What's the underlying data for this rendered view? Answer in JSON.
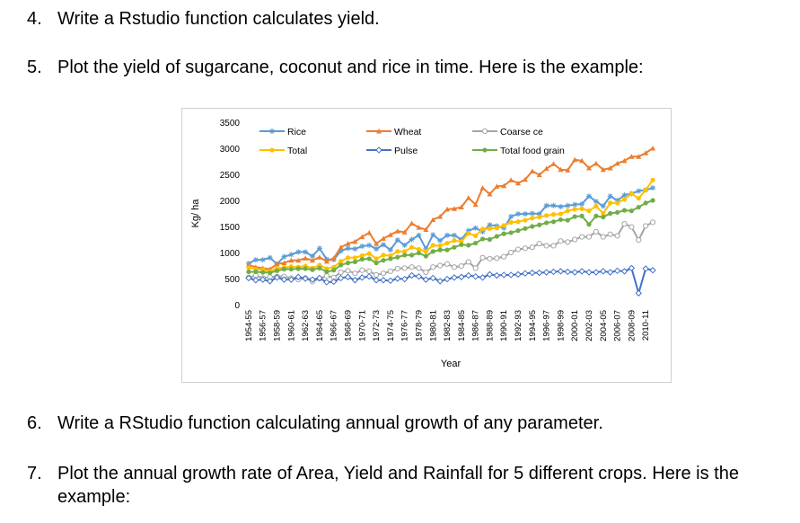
{
  "items": [
    {
      "num": "4.",
      "text": "Write a Rstudio function calculates yield."
    },
    {
      "num": "5.",
      "text": "Plot the yield of sugarcane, coconut and rice in time. Here is the example:"
    },
    {
      "num": "6.",
      "text": "Write a RStudio function calculating annual growth of any parameter."
    },
    {
      "num": "7.",
      "text": "Plot the annual growth rate of Area, Yield and Rainfall for 5 different crops. Here is the",
      "text2": "example:"
    }
  ],
  "chart_data": {
    "type": "line",
    "title": "",
    "xlabel": "Year",
    "ylabel": "Kg/ ha",
    "ylim": [
      0,
      3500
    ],
    "yticks": [
      0,
      500,
      1000,
      1500,
      2000,
      2500,
      3000,
      3500
    ],
    "grid": false,
    "legend_position": "top-left",
    "x_tick_labels": [
      "1954-55",
      "1956-57",
      "1958-59",
      "1960-61",
      "1962-63",
      "1964-65",
      "1966-67",
      "1968-69",
      "1970-71",
      "1972-73",
      "1974-75",
      "1976-77",
      "1978-79",
      "1980-81",
      "1982-83",
      "1984-85",
      "1986-87",
      "1988-89",
      "1990-91",
      "1992-93",
      "1994-95",
      "1996-97",
      "1998-99",
      "2000-01",
      "2002-03",
      "2004-05",
      "2006-07",
      "2008-09",
      "2010-11"
    ],
    "x_count": 58,
    "series": [
      {
        "name": "Rice",
        "color": "#5b9bd5",
        "marker": "asterisk",
        "values": [
          790,
          860,
          860,
          900,
          780,
          920,
          960,
          1010,
          1010,
          930,
          1080,
          870,
          860,
          1030,
          1080,
          1070,
          1120,
          1140,
          1070,
          1150,
          1050,
          1240,
          1140,
          1250,
          1330,
          1070,
          1340,
          1230,
          1330,
          1330,
          1250,
          1420,
          1470,
          1400,
          1530,
          1510,
          1470,
          1690,
          1740,
          1740,
          1750,
          1740,
          1900,
          1900,
          1880,
          1900,
          1920,
          1930,
          2080,
          1980,
          1890,
          2080,
          2000,
          2100,
          2130,
          2180,
          2200,
          2240
        ]
      },
      {
        "name": "Wheat",
        "color": "#ed7d31",
        "marker": "triangle",
        "values": [
          760,
          720,
          700,
          680,
          780,
          800,
          850,
          850,
          890,
          850,
          910,
          830,
          890,
          1100,
          1170,
          1210,
          1300,
          1380,
          1170,
          1270,
          1340,
          1410,
          1390,
          1560,
          1480,
          1440,
          1630,
          1690,
          1830,
          1840,
          1870,
          2050,
          1920,
          2240,
          2120,
          2270,
          2280,
          2390,
          2330,
          2400,
          2560,
          2490,
          2610,
          2700,
          2590,
          2580,
          2780,
          2760,
          2620,
          2710,
          2590,
          2620,
          2710,
          2760,
          2840,
          2840,
          2910,
          3000
        ]
      },
      {
        "name": "Coarse ce",
        "color": "#a5a5a5",
        "marker": "open-circle",
        "values": [
          520,
          560,
          510,
          530,
          540,
          540,
          510,
          480,
          510,
          440,
          500,
          550,
          520,
          620,
          650,
          600,
          660,
          640,
          570,
          600,
          640,
          690,
          700,
          720,
          700,
          620,
          720,
          750,
          780,
          720,
          740,
          820,
          700,
          900,
          880,
          890,
          920,
          1000,
          1060,
          1080,
          1100,
          1170,
          1130,
          1130,
          1220,
          1200,
          1250,
          1300,
          1300,
          1400,
          1300,
          1350,
          1320,
          1550,
          1490,
          1240,
          1510,
          1580
        ]
      },
      {
        "name": "Total",
        "color": "#ffc000",
        "marker": "filled-circle",
        "values": [
          710,
          680,
          670,
          640,
          700,
          710,
          730,
          720,
          740,
          700,
          760,
          690,
          720,
          830,
          900,
          900,
          940,
          980,
          880,
          950,
          940,
          1020,
          1020,
          1100,
          1060,
          1020,
          1140,
          1130,
          1180,
          1230,
          1210,
          1370,
          1320,
          1450,
          1460,
          1470,
          1520,
          1580,
          1590,
          1620,
          1660,
          1680,
          1710,
          1730,
          1740,
          1800,
          1830,
          1840,
          1800,
          1890,
          1750,
          1950,
          1950,
          2020,
          2130,
          2040,
          2200,
          2390
        ]
      },
      {
        "name": "Pulse",
        "color": "#4472c4",
        "marker": "diamond",
        "values": [
          510,
          470,
          480,
          450,
          520,
          480,
          480,
          530,
          500,
          480,
          510,
          430,
          440,
          510,
          530,
          470,
          520,
          540,
          470,
          470,
          460,
          500,
          490,
          560,
          540,
          480,
          510,
          450,
          490,
          520,
          530,
          560,
          540,
          520,
          580,
          560,
          570,
          570,
          580,
          600,
          610,
          610,
          620,
          630,
          640,
          630,
          620,
          640,
          620,
          620,
          640,
          620,
          650,
          640,
          700,
          220,
          690,
          660
        ]
      },
      {
        "name": "Total food grain",
        "color": "#70ad47",
        "marker": "filled-circle",
        "values": [
          630,
          630,
          620,
          610,
          650,
          680,
          680,
          690,
          690,
          670,
          700,
          630,
          660,
          760,
          800,
          820,
          870,
          880,
          800,
          850,
          880,
          910,
          950,
          950,
          990,
          930,
          1020,
          1050,
          1050,
          1100,
          1150,
          1140,
          1180,
          1260,
          1250,
          1310,
          1360,
          1380,
          1420,
          1460,
          1500,
          1530,
          1570,
          1590,
          1630,
          1620,
          1690,
          1700,
          1540,
          1700,
          1680,
          1750,
          1770,
          1810,
          1800,
          1870,
          1950,
          2000
        ]
      }
    ]
  }
}
